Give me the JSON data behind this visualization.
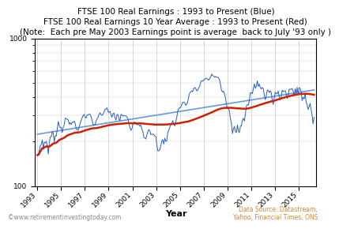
{
  "title_line1": "FTSE 100 Real Earnings : 1993 to Present (Blue)",
  "title_line2": "FTSE 100 Real Earnings 10 Year Average : 1993 to Present (Red)",
  "title_line3": "(Note:  Each pre May 2003 Earnings point is average  back to July '93 only )",
  "xlabel": "Year",
  "data_source": "Data Source: Datastream,\nYahoo, Financial Times, ONS",
  "copyright": "©www.retirementinvestingtoday.com",
  "background_color": "#ffffff",
  "grid_color": "#c8c8c8",
  "blue_color": "#1f5fc8",
  "red_color": "#cc2200",
  "trendline_blue_color": "#6699dd",
  "ylim_min": 100,
  "ylim_max": 1000,
  "xmin": 1992.8,
  "xmax": 2016.5,
  "title_fontsize": 7.5,
  "xlabel_fontsize": 8,
  "tick_fontsize": 6.5,
  "copyright_fontsize": 5.5,
  "datasource_fontsize": 5.5,
  "x_ticks": [
    1993,
    1995,
    1997,
    1999,
    2001,
    2003,
    2005,
    2007,
    2009,
    2011,
    2013,
    2015
  ]
}
